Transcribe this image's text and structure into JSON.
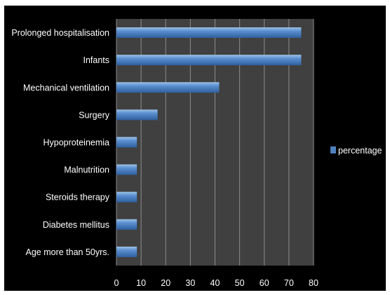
{
  "chart_data": {
    "type": "bar",
    "orientation": "horizontal",
    "categories": [
      "Prolonged hospitalisation",
      "Infants",
      "Mechanical ventilation",
      "Surgery",
      "Hypoproteinemia",
      "Malnutrition",
      "Steroids therapy",
      "Diabetes mellitus",
      "Age more than 50yrs."
    ],
    "series": [
      {
        "name": "percentage",
        "values": [
          75,
          75,
          41.7,
          16.7,
          8.3,
          8.3,
          8.3,
          8.3,
          8.3
        ],
        "color": "#4f81bd"
      }
    ],
    "xlim": [
      0,
      80
    ],
    "xticks": [
      "0",
      "10",
      "20",
      "30",
      "40",
      "50",
      "60",
      "70",
      "80"
    ],
    "grid": "vertical",
    "legend_position": "right",
    "colors": {
      "background": "#000000",
      "plot_area": "#404040",
      "gridline": "#8c8c8c",
      "text": "#ffffff",
      "bar": "#4f81bd"
    }
  }
}
